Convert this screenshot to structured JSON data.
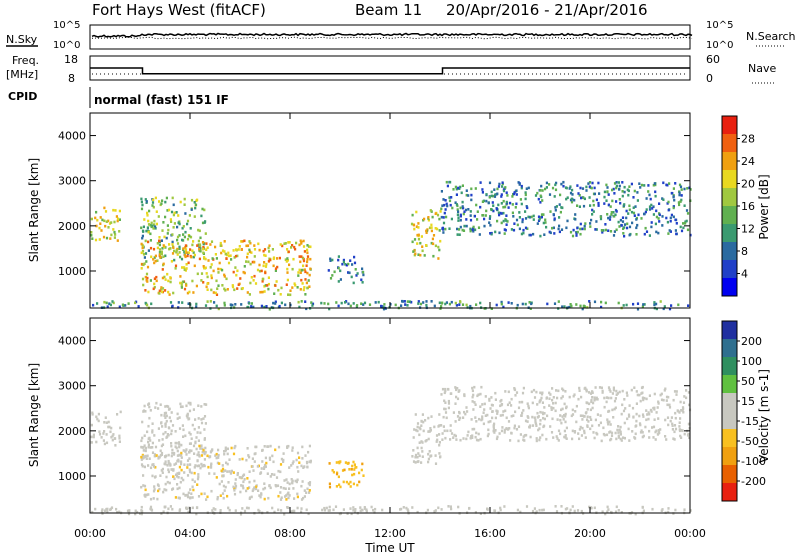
{
  "header": {
    "title": "Fort Hays West (fitACF)",
    "beam": "Beam 11",
    "date_range": "20/Apr/2016 - 21/Apr/2016"
  },
  "noise_panel": {
    "left_label": "N.Sky",
    "right_label": "N.Search",
    "left_ticks": [
      "10^5",
      "10^0"
    ],
    "right_ticks": [
      "10^5",
      "10^0"
    ]
  },
  "freq_panel": {
    "left_label_1": "Freq.",
    "left_label_2": "[MHz]",
    "right_label": "Nave",
    "left_ticks": [
      "18",
      "8"
    ],
    "right_ticks": [
      "60",
      "0"
    ],
    "freq_steps": [
      [
        0,
        2.1,
        12
      ],
      [
        2.1,
        14.1,
        8.6
      ],
      [
        14.1,
        24,
        12
      ]
    ]
  },
  "cpid": {
    "label": "CPID",
    "value": "normal (fast) 151 IF"
  },
  "chart_data": [
    {
      "type": "heatmap",
      "name": "power",
      "ylabel": "Slant Range [km]",
      "xlabel": "Time UT",
      "xlim_hours": [
        0,
        24
      ],
      "ylim_km": [
        180,
        4500
      ],
      "yticks": [
        "1000",
        "2000",
        "3000",
        "4000"
      ],
      "xticks": [
        "00:00",
        "04:00",
        "08:00",
        "12:00",
        "16:00",
        "20:00",
        "00:00"
      ],
      "colorbar": {
        "label": "Power [dB]",
        "ticks": [
          "4",
          "8",
          "12",
          "16",
          "20",
          "24",
          "28"
        ],
        "range": [
          0,
          30
        ],
        "colors": [
          "#0000f0",
          "#2040c8",
          "#2a6aa0",
          "#3a9a70",
          "#60b050",
          "#a0c840",
          "#e8d820",
          "#f0a010",
          "#f06010",
          "#e82010"
        ]
      },
      "echo_regions": [
        {
          "t0": 0.0,
          "t1": 1.2,
          "r0": 1700,
          "r1": 2450,
          "level": 18
        },
        {
          "t0": 2.0,
          "t1": 4.6,
          "r0": 1250,
          "r1": 2650,
          "level": 14
        },
        {
          "t0": 2.0,
          "t1": 8.8,
          "r0": 500,
          "r1": 1700,
          "level": 20
        },
        {
          "t0": 9.5,
          "t1": 10.9,
          "r0": 750,
          "r1": 1350,
          "level": 8
        },
        {
          "t0": 12.8,
          "t1": 14.0,
          "r0": 1300,
          "r1": 2400,
          "level": 18
        },
        {
          "t0": 14.0,
          "t1": 24.0,
          "r0": 1800,
          "r1": 3000,
          "level": 9
        },
        {
          "t0": 0.0,
          "t1": 24.0,
          "r0": 180,
          "r1": 360,
          "level": 10
        }
      ]
    },
    {
      "type": "heatmap",
      "name": "velocity",
      "ylabel": "Slant Range [km]",
      "xlabel": "Time UT",
      "xlim_hours": [
        0,
        24
      ],
      "ylim_km": [
        180,
        4500
      ],
      "yticks": [
        "1000",
        "2000",
        "3000",
        "4000"
      ],
      "xticks": [
        "00:00",
        "04:00",
        "08:00",
        "12:00",
        "16:00",
        "20:00",
        "00:00"
      ],
      "colorbar": {
        "label": "Velocity [m s-1]",
        "ticks": [
          "200",
          "100",
          "50",
          "15",
          "-15",
          "-50",
          "-100",
          "-200"
        ],
        "range": [
          -250,
          250
        ],
        "colors": [
          "#2030a0",
          "#2f6f8f",
          "#2f8f5f",
          "#60c040",
          "#c8c8c0",
          "#c8c8c0",
          "#f8c020",
          "#f0a010",
          "#e86000",
          "#e82010"
        ]
      },
      "echo_regions": [
        {
          "t0": 0.0,
          "t1": 1.2,
          "r0": 1700,
          "r1": 2450,
          "v": 0
        },
        {
          "t0": 2.0,
          "t1": 4.6,
          "r0": 1250,
          "r1": 2650,
          "v": 0
        },
        {
          "t0": 2.0,
          "t1": 8.8,
          "r0": 500,
          "r1": 1700,
          "v": -35
        },
        {
          "t0": 9.5,
          "t1": 10.9,
          "r0": 750,
          "r1": 1350,
          "v": -90
        },
        {
          "t0": 12.8,
          "t1": 14.0,
          "r0": 1300,
          "r1": 2400,
          "v": 0
        },
        {
          "t0": 14.0,
          "t1": 24.0,
          "r0": 1800,
          "r1": 3000,
          "v": 0
        },
        {
          "t0": 0.0,
          "t1": 24.0,
          "r0": 180,
          "r1": 360,
          "v": -30
        }
      ]
    }
  ]
}
